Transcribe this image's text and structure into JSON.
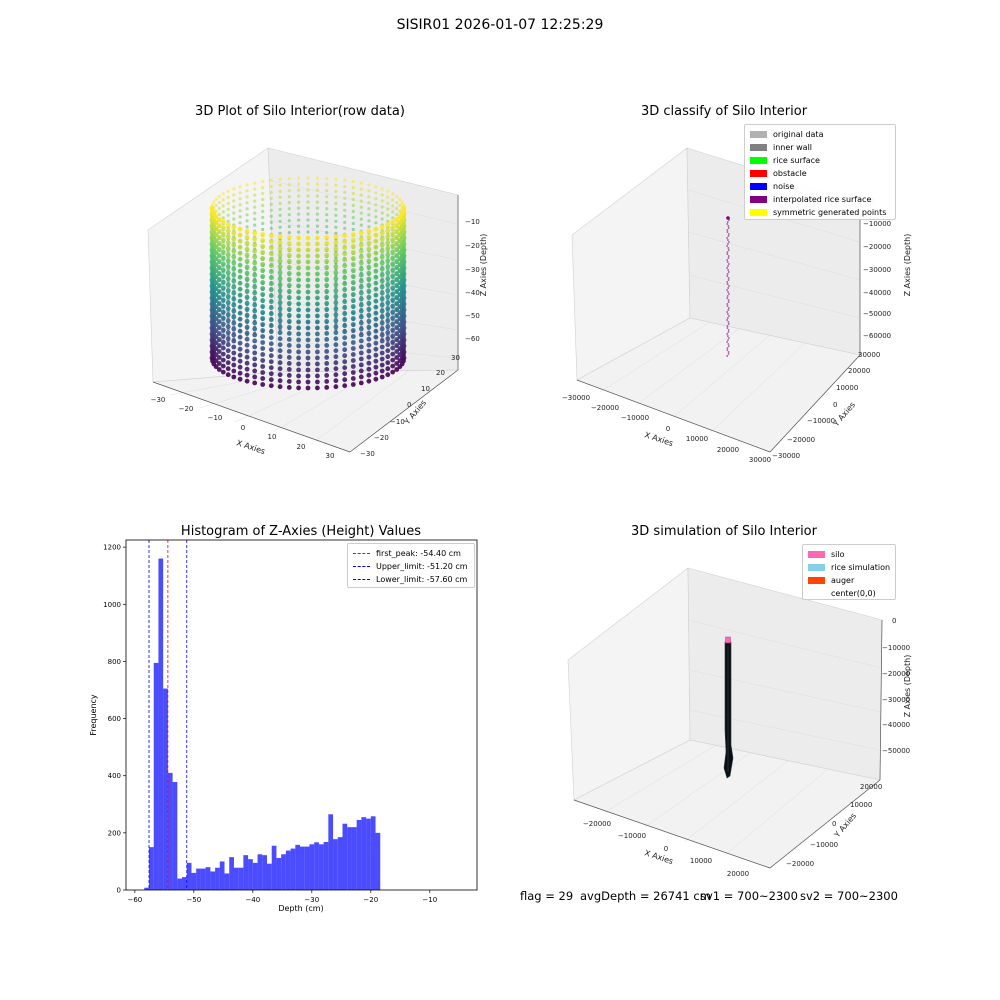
{
  "figure": {
    "suptitle": "SISIR01 2026-01-07 12:25:29",
    "status": {
      "flag": "flag = 29",
      "avg_depth": "avgDepth = 26741 cm",
      "sv1": "sv1 = 700~2300",
      "sv2": "sv2 = 700~2300"
    }
  },
  "chart_data": [
    {
      "id": "raw",
      "type": "scatter",
      "title": "3D Plot of Silo Interior(row data)",
      "xlabel": "X Axies",
      "ylabel": "Y Axies",
      "zlabel": "Z Axies (Depth)",
      "xticks": [
        "−30",
        "−20",
        "−10",
        "0",
        "10",
        "20",
        "30"
      ],
      "yticks": [
        "−30",
        "−20",
        "−10",
        "0",
        "10",
        "20",
        "30"
      ],
      "zticks": [
        "−10",
        "−20",
        "−30",
        "−40",
        "−50",
        "−60"
      ],
      "xlim": [
        -33,
        33
      ],
      "ylim": [
        -33,
        33
      ],
      "zlim": [
        -62,
        -5
      ],
      "cylinder": {
        "radius": 29,
        "z_min": -58,
        "z_max": -8
      },
      "colormap": [
        "#440154",
        "#3b528b",
        "#21918c",
        "#5ec962",
        "#fde725"
      ]
    },
    {
      "id": "classify",
      "type": "scatter",
      "title": "3D classify of Silo Interior",
      "xlabel": "X Axies",
      "ylabel": "Y Axies",
      "zlabel": "Z Axies (Depth)",
      "xticks": [
        "−30000",
        "−20000",
        "−10000",
        "0",
        "10000",
        "20000",
        "30000"
      ],
      "yticks": [
        "−30000",
        "−20000",
        "−10000",
        "0",
        "10000",
        "20000",
        "30000"
      ],
      "zticks": [
        "0",
        "−10000",
        "−20000",
        "−30000",
        "−40000",
        "−50000",
        "−60000"
      ],
      "legend": {
        "placement": "top-right",
        "items": [
          {
            "label": "original data",
            "color": "#b0b0b0"
          },
          {
            "label": "inner wall",
            "color": "#808080"
          },
          {
            "label": "rice surface",
            "color": "#00ff00"
          },
          {
            "label": "obstacle",
            "color": "#ff0000"
          },
          {
            "label": "noise",
            "color": "#0000ff"
          },
          {
            "label": "interpolated rice surface",
            "color": "#800080"
          },
          {
            "label": "symmetric generated points",
            "color": "#ffff00"
          }
        ]
      }
    },
    {
      "id": "histogram",
      "type": "bar",
      "title": "Histogram of Z-Axies (Height) Values",
      "xlabel": "Depth (cm)",
      "ylabel": "Frequency",
      "xlim": [
        -61.5,
        -2
      ],
      "ylim": [
        0,
        1225
      ],
      "xticks": [
        -60,
        -50,
        -40,
        -30,
        -20,
        -10
      ],
      "xtick_labels": [
        "−60",
        "−50",
        "−40",
        "−30",
        "−20",
        "−10"
      ],
      "yticks": [
        0,
        200,
        400,
        800,
        1000,
        1200
      ],
      "ytick_labels": [
        "0",
        "200",
        "400",
        "800",
        "1000",
        "1200"
      ],
      "ytick_extra": {
        "value": 600,
        "label": "600"
      },
      "bar_color": "#0000ff",
      "bin_start": -58.4,
      "bin_width": 0.8,
      "values": [
        8,
        150,
        795,
        1160,
        705,
        410,
        378,
        40,
        45,
        95,
        60,
        75,
        75,
        80,
        65,
        78,
        100,
        58,
        115,
        78,
        78,
        122,
        108,
        95,
        125,
        122,
        92,
        155,
        112,
        125,
        138,
        145,
        158,
        152,
        152,
        160,
        167,
        160,
        168,
        265,
        178,
        185,
        232,
        220,
        220,
        245,
        255,
        250,
        258,
        200
      ],
      "lines": [
        {
          "label": "first_peak: -54.40 cm",
          "x": -54.4,
          "color": "#ff0000"
        },
        {
          "label": "Upper_limit: -51.20 cm",
          "x": -51.2,
          "color": "#0000ff"
        },
        {
          "label": "Lower_limit: -57.60 cm",
          "x": -57.6,
          "color": "#0000ff"
        }
      ],
      "legend": {
        "placement": "top-right"
      }
    },
    {
      "id": "simulation",
      "type": "area",
      "title": "3D simulation of Silo Interior",
      "xlabel": "X Axies",
      "ylabel": "Y Axies",
      "zlabel": "Z Axies (Depth)",
      "xticks": [
        "−20000",
        "−10000",
        "0",
        "10000",
        "20000"
      ],
      "yticks": [
        "−20000",
        "−10000",
        "0",
        "10000",
        "20000"
      ],
      "zticks": [
        "0",
        "−10000",
        "−20000",
        "−30000",
        "−40000",
        "−50000"
      ],
      "legend": {
        "placement": "top-right",
        "items": [
          {
            "label": "silo",
            "color": "#ff69b4"
          },
          {
            "label": "rice simulation",
            "color": "#87ceeb"
          },
          {
            "label": "auger",
            "color": "#ff4500"
          },
          {
            "label": "center(0,0)",
            "color": "#ffffff"
          }
        ]
      }
    }
  ]
}
